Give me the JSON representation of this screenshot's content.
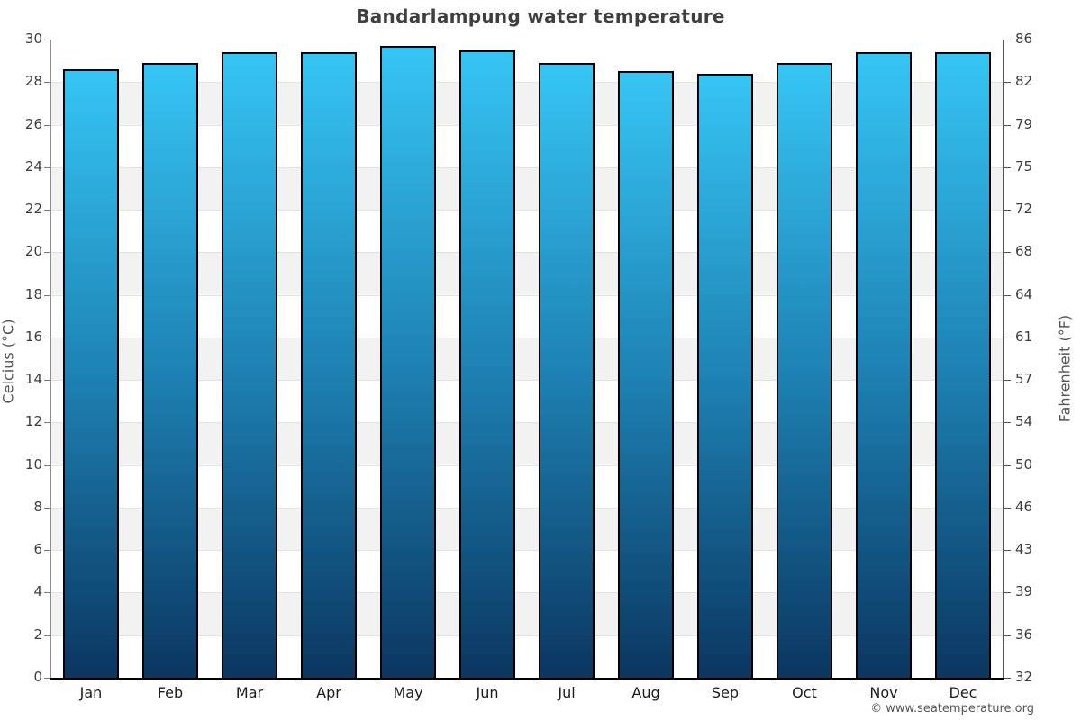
{
  "title": "Bandarlampung water temperature",
  "copyright": "© www.seatemperature.org",
  "axes": {
    "left_label": "Celcius (°C)",
    "right_label": "Fahrenheit (°F)"
  },
  "chart_data": {
    "type": "bar",
    "title": "Bandarlampung water temperature",
    "categories": [
      "Jan",
      "Feb",
      "Mar",
      "Apr",
      "May",
      "Jun",
      "Jul",
      "Aug",
      "Sep",
      "Oct",
      "Nov",
      "Dec"
    ],
    "values": [
      28.6,
      28.9,
      29.4,
      29.4,
      29.7,
      29.5,
      28.9,
      28.5,
      28.4,
      28.9,
      29.4,
      29.4
    ],
    "unit": "°C",
    "xlabel": "",
    "ylabel_left": "Celcius (°C)",
    "ylabel_right": "Fahrenheit (°F)",
    "ylim": [
      0,
      30
    ],
    "yticks_celsius": [
      30,
      28,
      26,
      24,
      22,
      20,
      18,
      16,
      14,
      12,
      10,
      8,
      6,
      4,
      2,
      0
    ],
    "yticks_fahrenheit": [
      86,
      82,
      79,
      75,
      72,
      68,
      64,
      61,
      57,
      54,
      50,
      46,
      43,
      39,
      36,
      32
    ],
    "grid": "alternating horizontal bands every 2°C",
    "legend": null,
    "colors": {
      "bar_gradient_top": "#36c5f4",
      "bar_gradient_mid": "#1e82b4",
      "bar_gradient_bottom": "#0b3660",
      "bar_border": "#000000",
      "band_light": "#ffffff",
      "band_dark": "#f2f2f2",
      "title_text": "#3f3f3f",
      "tick_text": "#3d3d3d",
      "month_text": "#1a1a1a",
      "axis_label_text": "#555555"
    }
  }
}
